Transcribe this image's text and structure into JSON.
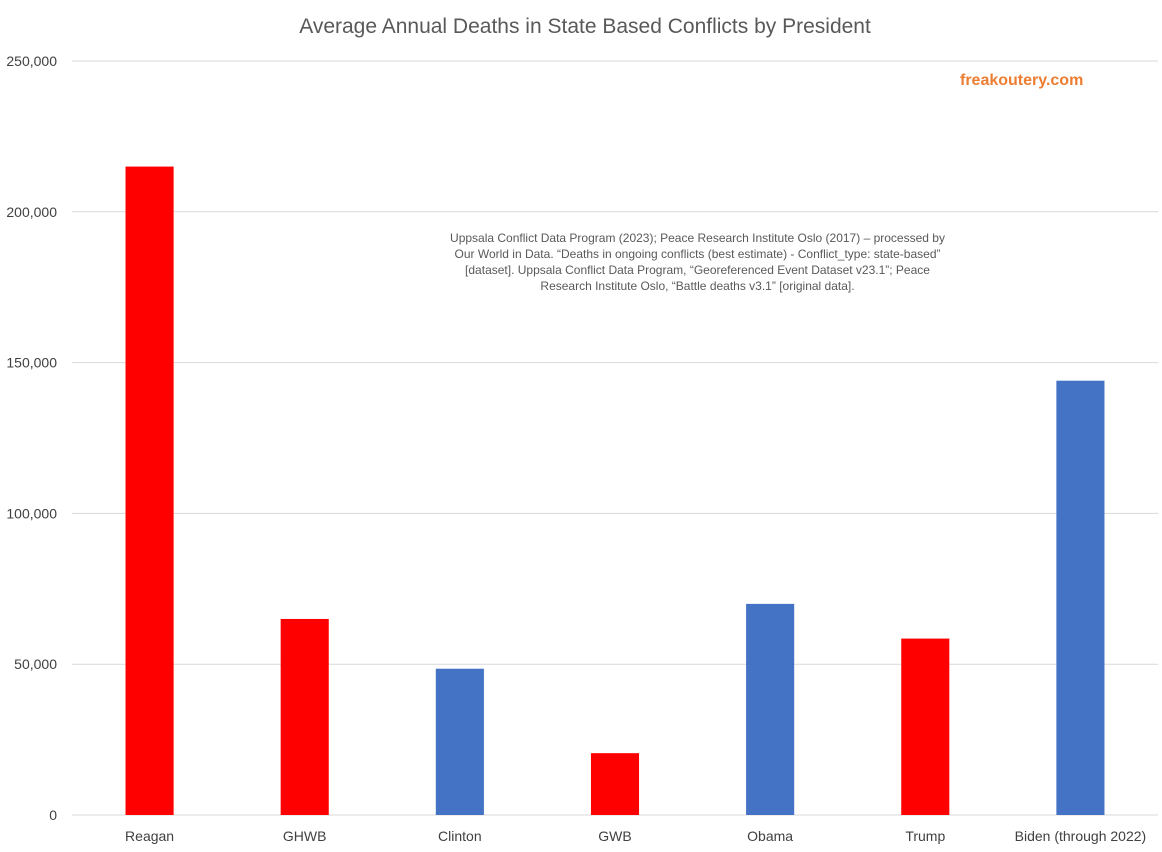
{
  "chart_data": {
    "type": "bar",
    "title": "Average Annual Deaths in State Based Conflicts by President",
    "xlabel": "",
    "ylabel": "",
    "ylim": [
      0,
      250000
    ],
    "yticks": [
      0,
      50000,
      100000,
      150000,
      200000,
      250000
    ],
    "ytick_labels": [
      "0",
      "50,000",
      "100,000",
      "150,000",
      "200,000",
      "250,000"
    ],
    "categories": [
      "Reagan",
      "GHWB",
      "Clinton",
      "GWB",
      "Obama",
      "Trump",
      "Biden (through 2022)"
    ],
    "values": [
      215000,
      65000,
      48500,
      20500,
      70000,
      58500,
      144000
    ],
    "bar_colors": [
      "#ff0000",
      "#ff0000",
      "#4472c4",
      "#ff0000",
      "#4472c4",
      "#ff0000",
      "#4472c4"
    ],
    "grid": true,
    "legend": "none"
  },
  "watermark": "freakoutery.com",
  "source_note": "Uppsala Conflict Data Program (2023); Peace Research Institute Oslo (2017) – processed by Our World in Data. “Deaths in ongoing conflicts (best estimate) - Conflict_type: state-based” [dataset]. Uppsala Conflict Data Program, “Georeferenced Event Dataset v23.1”; Peace Research Institute Oslo, “Battle deaths v3.1” [original data].",
  "colors": {
    "republican": "#ff0000",
    "democrat": "#4472c4",
    "watermark": "#ed7d31"
  }
}
